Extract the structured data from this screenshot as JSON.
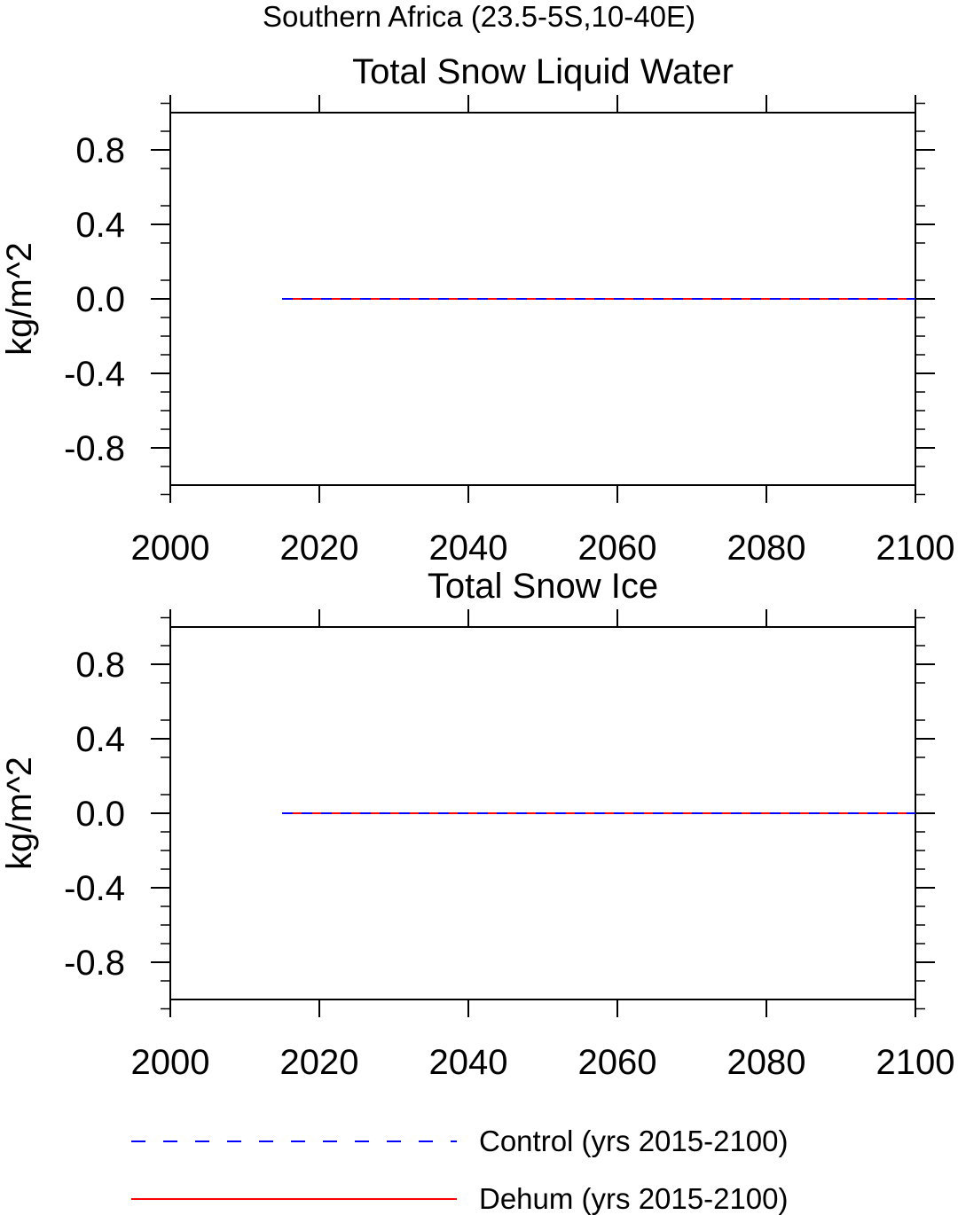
{
  "figure": {
    "suptitle": "Southern Africa (23.5-5S,10-40E)"
  },
  "chart_data": [
    {
      "type": "line",
      "title": "Total Snow Liquid Water",
      "ylabel": "kg/m^2",
      "xlabel": "",
      "xlim": [
        2000,
        2100
      ],
      "ylim": [
        -1,
        1
      ],
      "xticks": [
        2000,
        2020,
        2040,
        2060,
        2080,
        2100
      ],
      "yticks": [
        0.8,
        0.4,
        0.0,
        -0.4,
        -0.8
      ],
      "ytick_labels": [
        "0.8",
        "0.4",
        "0.0",
        "-0.4",
        "-0.8"
      ],
      "series": [
        {
          "name": "Dehum (yrs 2015-2100)",
          "color": "#ff0000",
          "style": "solid",
          "x": [
            2015,
            2100
          ],
          "y": [
            0,
            0
          ]
        },
        {
          "name": "Control (yrs 2015-2100)",
          "color": "#0000ff",
          "style": "dashed",
          "x": [
            2015,
            2100
          ],
          "y": [
            0,
            0
          ]
        }
      ]
    },
    {
      "type": "line",
      "title": "Total Snow Ice",
      "ylabel": "kg/m^2",
      "xlabel": "",
      "xlim": [
        2000,
        2100
      ],
      "ylim": [
        -1,
        1
      ],
      "xticks": [
        2000,
        2020,
        2040,
        2060,
        2080,
        2100
      ],
      "yticks": [
        0.8,
        0.4,
        0.0,
        -0.4,
        -0.8
      ],
      "ytick_labels": [
        "0.8",
        "0.4",
        "0.0",
        "-0.4",
        "-0.8"
      ],
      "series": [
        {
          "name": "Dehum (yrs 2015-2100)",
          "color": "#ff0000",
          "style": "solid",
          "x": [
            2015,
            2100
          ],
          "y": [
            0,
            0
          ]
        },
        {
          "name": "Control (yrs 2015-2100)",
          "color": "#0000ff",
          "style": "dashed",
          "x": [
            2015,
            2100
          ],
          "y": [
            0,
            0
          ]
        }
      ]
    }
  ],
  "legend": {
    "placement": "bottom",
    "entries": [
      {
        "label": "Control (yrs 2015-2100)",
        "color": "#0000ff",
        "style": "dashed"
      },
      {
        "label": "Dehum (yrs 2015-2100)",
        "color": "#ff0000",
        "style": "solid"
      }
    ]
  }
}
